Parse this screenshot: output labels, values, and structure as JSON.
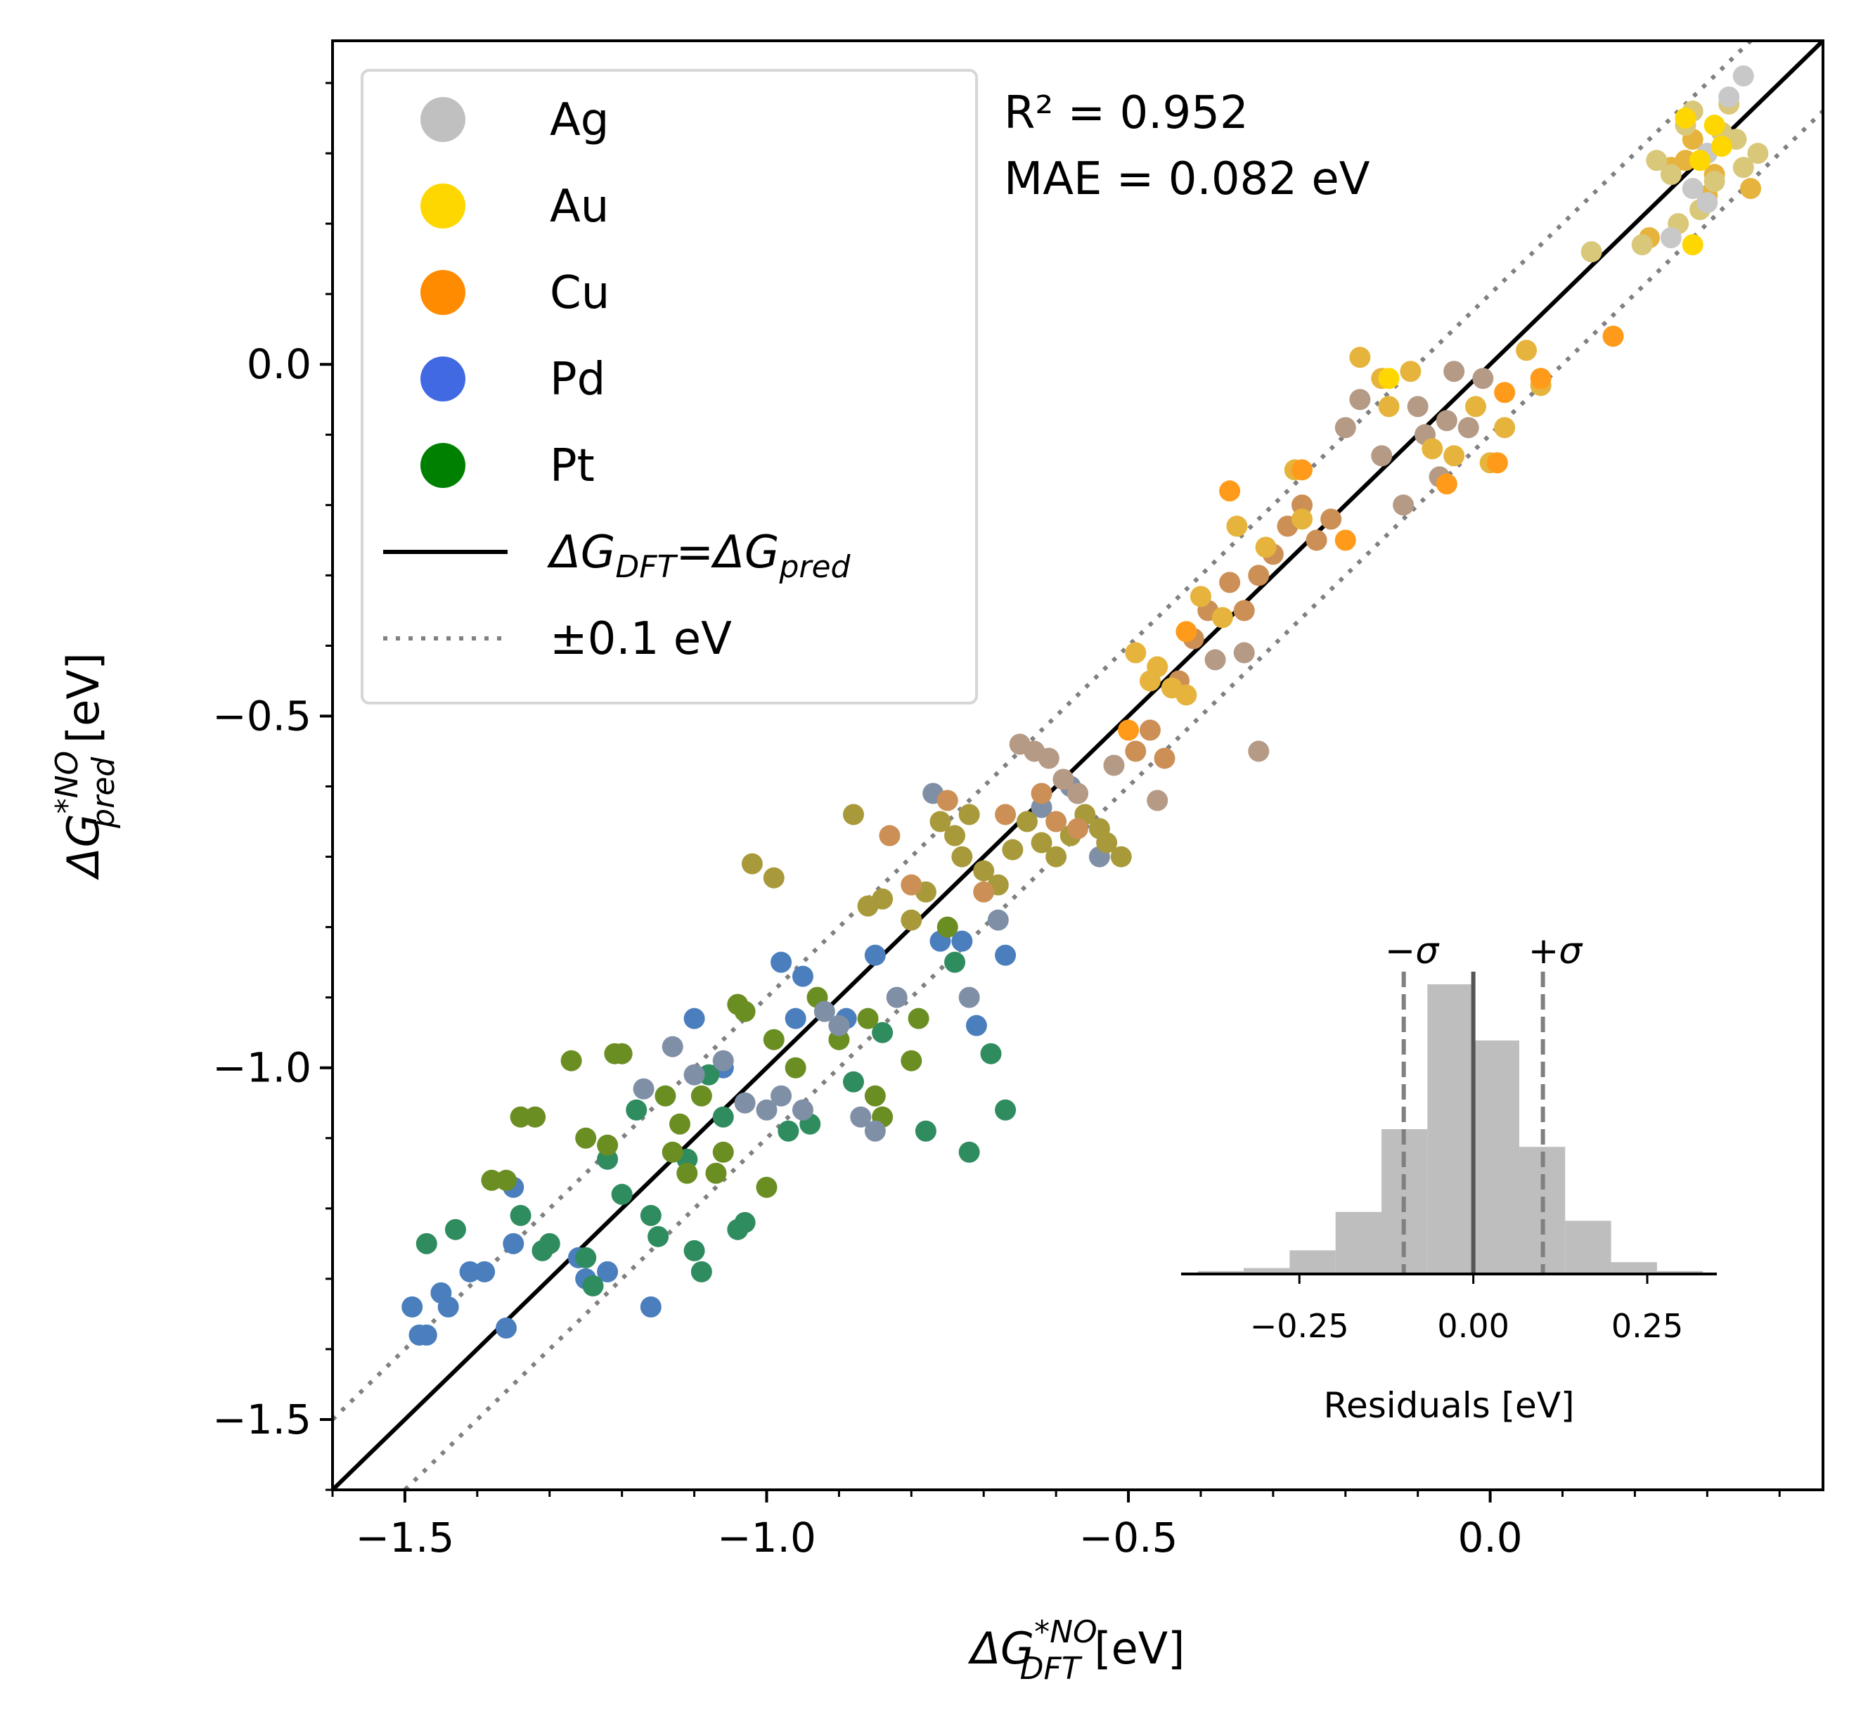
{
  "chart_data": {
    "type": "scatter",
    "xlabel": {
      "base": "ΔG",
      "sup": "*NO",
      "sub": "DFT",
      "unit": " [eV]"
    },
    "ylabel": {
      "base": "ΔG",
      "sup": "*NO",
      "sub": "pred",
      "unit": " [eV]"
    },
    "xlim": [
      -1.6,
      0.46
    ],
    "ylim": [
      -1.6,
      0.46
    ],
    "x_ticks": [
      -1.5,
      -1.0,
      -0.5,
      0.0
    ],
    "x_tick_labels": [
      "−1.5",
      "−1.0",
      "−0.5",
      "0.0"
    ],
    "y_ticks": [
      -1.5,
      -1.0,
      -0.5,
      0.0
    ],
    "y_tick_labels": [
      "−1.5",
      "−1.0",
      "−0.5",
      "0.0"
    ],
    "minor_tick_step": 0.1,
    "grid": false,
    "stats": {
      "r2_text": "R² = 0.952",
      "mae_text": "MAE = 0.082 eV"
    },
    "legend": {
      "placement": "top-left",
      "entries": [
        {
          "label": "Ag",
          "kind": "marker",
          "color": "#c0c0c0"
        },
        {
          "label": "Au",
          "kind": "marker",
          "color": "#ffd700"
        },
        {
          "label": "Cu",
          "kind": "marker",
          "color": "#ff8c00"
        },
        {
          "label": "Pd",
          "kind": "marker",
          "color": "#4169e1"
        },
        {
          "label": "Pt",
          "kind": "marker",
          "color": "#008000"
        },
        {
          "kind": "solid-line",
          "color": "#000000",
          "base1": "ΔG",
          "sub1": "DFT",
          "eq": "=",
          "base2": "ΔG",
          "sub2": "pred"
        },
        {
          "label": "±0.1 eV",
          "kind": "dotted-line",
          "color": "#808080"
        }
      ]
    },
    "reference_lines": [
      {
        "name": "parity",
        "offset": 0.0,
        "style": "solid",
        "color": "#000000"
      },
      {
        "name": "plus-band",
        "offset": 0.1,
        "style": "dotted",
        "color": "#808080"
      },
      {
        "name": "minus-band",
        "offset": -0.1,
        "style": "dotted",
        "color": "#808080"
      }
    ],
    "series": [
      {
        "color": "#4a7ebd",
        "points": [
          [
            -1.49,
            -1.34
          ],
          [
            -1.48,
            -1.38
          ],
          [
            -1.47,
            -1.38
          ],
          [
            -1.45,
            -1.32
          ],
          [
            -1.44,
            -1.34
          ],
          [
            -1.41,
            -1.29
          ],
          [
            -1.39,
            -1.29
          ],
          [
            -1.36,
            -1.37
          ],
          [
            -1.35,
            -1.25
          ],
          [
            -1.35,
            -1.17
          ],
          [
            -1.26,
            -1.27
          ],
          [
            -1.25,
            -1.3
          ],
          [
            -1.22,
            -1.29
          ],
          [
            -1.16,
            -1.34
          ],
          [
            -1.1,
            -0.93
          ],
          [
            -1.06,
            -1.0
          ],
          [
            -0.98,
            -0.85
          ],
          [
            -0.96,
            -0.93
          ],
          [
            -0.95,
            -0.87
          ],
          [
            -0.89,
            -0.93
          ],
          [
            -0.85,
            -0.84
          ],
          [
            -0.76,
            -0.82
          ],
          [
            -0.73,
            -0.82
          ],
          [
            -0.71,
            -0.94
          ],
          [
            -0.67,
            -0.84
          ]
        ]
      },
      {
        "color": "#2f8c5f",
        "points": [
          [
            -1.47,
            -1.25
          ],
          [
            -1.43,
            -1.23
          ],
          [
            -1.34,
            -1.21
          ],
          [
            -1.31,
            -1.26
          ],
          [
            -1.3,
            -1.25
          ],
          [
            -1.25,
            -1.27
          ],
          [
            -1.24,
            -1.31
          ],
          [
            -1.22,
            -1.13
          ],
          [
            -1.2,
            -1.18
          ],
          [
            -1.18,
            -1.06
          ],
          [
            -1.16,
            -1.21
          ],
          [
            -1.15,
            -1.24
          ],
          [
            -1.11,
            -1.13
          ],
          [
            -1.1,
            -1.26
          ],
          [
            -1.09,
            -1.29
          ],
          [
            -1.08,
            -1.01
          ],
          [
            -1.06,
            -1.07
          ],
          [
            -1.04,
            -1.23
          ],
          [
            -1.03,
            -1.22
          ],
          [
            -0.97,
            -1.09
          ],
          [
            -0.94,
            -1.08
          ],
          [
            -0.88,
            -1.02
          ],
          [
            -0.84,
            -0.95
          ],
          [
            -0.78,
            -1.09
          ],
          [
            -0.74,
            -0.85
          ],
          [
            -0.72,
            -1.12
          ],
          [
            -0.69,
            -0.98
          ],
          [
            -0.67,
            -1.06
          ]
        ]
      },
      {
        "color": "#6b8e23",
        "points": [
          [
            -1.38,
            -1.16
          ],
          [
            -1.36,
            -1.16
          ],
          [
            -1.34,
            -1.07
          ],
          [
            -1.32,
            -1.07
          ],
          [
            -1.27,
            -0.99
          ],
          [
            -1.25,
            -1.1
          ],
          [
            -1.22,
            -1.11
          ],
          [
            -1.21,
            -0.98
          ],
          [
            -1.2,
            -0.98
          ],
          [
            -1.14,
            -1.04
          ],
          [
            -1.13,
            -1.12
          ],
          [
            -1.12,
            -1.08
          ],
          [
            -1.11,
            -1.15
          ],
          [
            -1.09,
            -1.04
          ],
          [
            -1.07,
            -1.15
          ],
          [
            -1.06,
            -1.12
          ],
          [
            -1.04,
            -0.91
          ],
          [
            -1.03,
            -0.92
          ],
          [
            -1.0,
            -1.17
          ],
          [
            -0.99,
            -0.96
          ],
          [
            -0.96,
            -1.0
          ],
          [
            -0.93,
            -0.9
          ],
          [
            -0.9,
            -0.96
          ],
          [
            -0.86,
            -0.93
          ],
          [
            -0.85,
            -1.04
          ],
          [
            -0.84,
            -1.07
          ],
          [
            -0.8,
            -0.99
          ],
          [
            -0.79,
            -0.93
          ],
          [
            -0.75,
            -0.8
          ]
        ]
      },
      {
        "color": "#7f8fa6",
        "points": [
          [
            -1.17,
            -1.03
          ],
          [
            -1.13,
            -0.97
          ],
          [
            -1.1,
            -1.01
          ],
          [
            -1.06,
            -0.99
          ],
          [
            -1.03,
            -1.05
          ],
          [
            -1.0,
            -1.06
          ],
          [
            -0.98,
            -1.04
          ],
          [
            -0.95,
            -1.06
          ],
          [
            -0.92,
            -0.92
          ],
          [
            -0.9,
            -0.94
          ],
          [
            -0.87,
            -1.07
          ],
          [
            -0.85,
            -1.09
          ],
          [
            -0.82,
            -0.9
          ],
          [
            -0.77,
            -0.61
          ],
          [
            -0.72,
            -0.9
          ],
          [
            -0.68,
            -0.79
          ],
          [
            -0.62,
            -0.63
          ],
          [
            -0.58,
            -0.6
          ],
          [
            -0.57,
            -0.61
          ],
          [
            -0.54,
            -0.7
          ]
        ]
      },
      {
        "color": "#a89a3a",
        "points": [
          [
            -1.02,
            -0.71
          ],
          [
            -0.99,
            -0.73
          ],
          [
            -0.88,
            -0.64
          ],
          [
            -0.86,
            -0.77
          ],
          [
            -0.84,
            -0.76
          ],
          [
            -0.8,
            -0.79
          ],
          [
            -0.78,
            -0.75
          ],
          [
            -0.76,
            -0.65
          ],
          [
            -0.74,
            -0.67
          ],
          [
            -0.73,
            -0.7
          ],
          [
            -0.72,
            -0.64
          ],
          [
            -0.7,
            -0.72
          ],
          [
            -0.68,
            -0.74
          ],
          [
            -0.66,
            -0.69
          ],
          [
            -0.64,
            -0.65
          ],
          [
            -0.62,
            -0.68
          ],
          [
            -0.6,
            -0.7
          ],
          [
            -0.58,
            -0.67
          ],
          [
            -0.56,
            -0.64
          ],
          [
            -0.54,
            -0.66
          ],
          [
            -0.53,
            -0.68
          ],
          [
            -0.51,
            -0.7
          ]
        ]
      },
      {
        "color": "#cc8f55",
        "points": [
          [
            -0.83,
            -0.67
          ],
          [
            -0.8,
            -0.74
          ],
          [
            -0.75,
            -0.62
          ],
          [
            -0.7,
            -0.75
          ],
          [
            -0.67,
            -0.64
          ],
          [
            -0.62,
            -0.61
          ],
          [
            -0.6,
            -0.65
          ],
          [
            -0.57,
            -0.66
          ],
          [
            -0.49,
            -0.55
          ],
          [
            -0.47,
            -0.52
          ],
          [
            -0.45,
            -0.56
          ],
          [
            -0.43,
            -0.45
          ],
          [
            -0.41,
            -0.39
          ],
          [
            -0.39,
            -0.35
          ],
          [
            -0.36,
            -0.31
          ],
          [
            -0.34,
            -0.35
          ],
          [
            -0.32,
            -0.3
          ],
          [
            -0.3,
            -0.27
          ],
          [
            -0.28,
            -0.23
          ],
          [
            -0.26,
            -0.2
          ],
          [
            -0.24,
            -0.25
          ],
          [
            -0.22,
            -0.22
          ]
        ]
      },
      {
        "color": "#b59a85",
        "points": [
          [
            -0.65,
            -0.54
          ],
          [
            -0.63,
            -0.55
          ],
          [
            -0.61,
            -0.56
          ],
          [
            -0.59,
            -0.59
          ],
          [
            -0.57,
            -0.61
          ],
          [
            -0.52,
            -0.57
          ],
          [
            -0.46,
            -0.62
          ],
          [
            -0.38,
            -0.42
          ],
          [
            -0.34,
            -0.41
          ],
          [
            -0.32,
            -0.55
          ],
          [
            -0.2,
            -0.09
          ],
          [
            -0.18,
            -0.05
          ],
          [
            -0.15,
            -0.13
          ],
          [
            -0.12,
            -0.2
          ],
          [
            -0.1,
            -0.06
          ],
          [
            -0.09,
            -0.1
          ],
          [
            -0.07,
            -0.16
          ],
          [
            -0.06,
            -0.08
          ],
          [
            -0.05,
            -0.01
          ],
          [
            -0.03,
            -0.09
          ],
          [
            -0.01,
            -0.02
          ]
        ]
      },
      {
        "color": "#e6b43c",
        "points": [
          [
            -0.49,
            -0.41
          ],
          [
            -0.47,
            -0.45
          ],
          [
            -0.46,
            -0.43
          ],
          [
            -0.44,
            -0.46
          ],
          [
            -0.42,
            -0.47
          ],
          [
            -0.4,
            -0.33
          ],
          [
            -0.37,
            -0.36
          ],
          [
            -0.35,
            -0.23
          ],
          [
            -0.31,
            -0.26
          ],
          [
            -0.27,
            -0.15
          ],
          [
            -0.26,
            -0.22
          ],
          [
            -0.18,
            0.01
          ],
          [
            -0.15,
            -0.02
          ],
          [
            -0.14,
            -0.06
          ],
          [
            -0.11,
            -0.01
          ],
          [
            -0.08,
            -0.12
          ],
          [
            -0.05,
            -0.13
          ],
          [
            -0.02,
            -0.06
          ],
          [
            0.0,
            -0.14
          ],
          [
            0.02,
            -0.09
          ],
          [
            0.05,
            0.02
          ],
          [
            0.07,
            -0.03
          ],
          [
            0.17,
            0.04
          ],
          [
            0.22,
            0.18
          ],
          [
            0.25,
            0.28
          ],
          [
            0.27,
            0.29
          ],
          [
            0.28,
            0.32
          ],
          [
            0.3,
            0.24
          ],
          [
            0.31,
            0.27
          ],
          [
            0.36,
            0.25
          ]
        ]
      },
      {
        "color": "#d9c87a",
        "points": [
          [
            0.14,
            0.16
          ],
          [
            0.21,
            0.17
          ],
          [
            0.23,
            0.29
          ],
          [
            0.25,
            0.27
          ],
          [
            0.26,
            0.2
          ],
          [
            0.27,
            0.34
          ],
          [
            0.28,
            0.36
          ],
          [
            0.29,
            0.22
          ],
          [
            0.31,
            0.26
          ],
          [
            0.32,
            0.33
          ],
          [
            0.33,
            0.37
          ],
          [
            0.34,
            0.32
          ],
          [
            0.35,
            0.28
          ],
          [
            0.37,
            0.3
          ]
        ]
      },
      {
        "color": "#c8c8c8",
        "points": [
          [
            0.25,
            0.18
          ],
          [
            0.28,
            0.25
          ],
          [
            0.3,
            0.3
          ],
          [
            0.33,
            0.38
          ],
          [
            0.35,
            0.41
          ],
          [
            0.3,
            0.23
          ]
        ]
      },
      {
        "color": "#ffd700",
        "points": [
          [
            0.27,
            0.35
          ],
          [
            0.29,
            0.29
          ],
          [
            0.31,
            0.34
          ],
          [
            0.32,
            0.31
          ],
          [
            0.28,
            0.17
          ],
          [
            -0.14,
            -0.02
          ]
        ]
      },
      {
        "color": "#ff9a1a",
        "points": [
          [
            -0.5,
            -0.52
          ],
          [
            -0.42,
            -0.38
          ],
          [
            -0.36,
            -0.18
          ],
          [
            -0.26,
            -0.15
          ],
          [
            -0.2,
            -0.25
          ],
          [
            -0.06,
            -0.17
          ],
          [
            0.01,
            -0.14
          ],
          [
            0.02,
            -0.04
          ],
          [
            0.07,
            -0.02
          ],
          [
            0.17,
            0.04
          ]
        ]
      }
    ],
    "inset": {
      "type": "histogram",
      "xlabel": "Residuals [eV]",
      "xlim": [
        -0.42,
        0.35
      ],
      "x_ticks": [
        -0.25,
        0.0,
        0.25
      ],
      "x_tick_labels": [
        "−0.25",
        "0.00",
        "0.25"
      ],
      "bin_width": 0.066,
      "bin_start": -0.396,
      "counts": [
        1,
        2,
        8,
        21,
        49,
        98,
        79,
        43,
        18,
        4,
        1
      ],
      "mean": 0.0,
      "sigma": 0.1,
      "sigma_labels": {
        "minus": "−σ",
        "plus": "+σ"
      },
      "bar_color": "#bebebe"
    }
  }
}
